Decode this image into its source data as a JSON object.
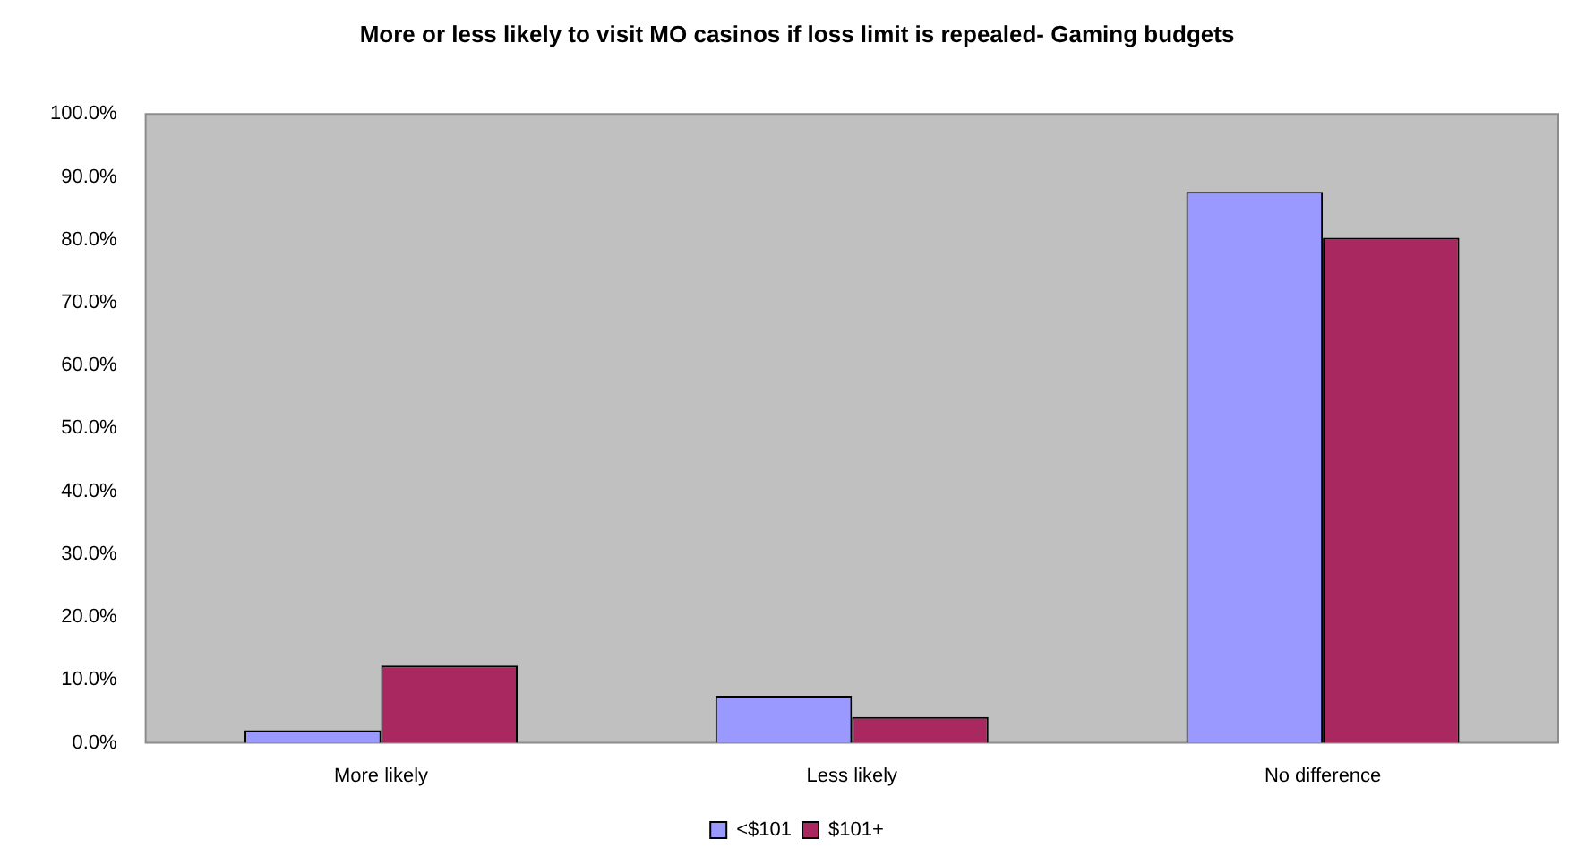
{
  "chart_data": {
    "type": "bar",
    "title": "More or less likely to visit MO casinos if loss limit is repealed- Gaming budgets",
    "categories": [
      "More likely",
      "Less likely",
      "No difference"
    ],
    "series": [
      {
        "name": "<$101",
        "color": "#9999ff",
        "values": [
          2.0,
          7.5,
          87.6
        ]
      },
      {
        "name": "$101+",
        "color": "#a8285f",
        "values": [
          12.3,
          4.1,
          80.3
        ]
      }
    ],
    "ylim": [
      0,
      100
    ],
    "yticks": [
      {
        "value": 0,
        "label": "0.0%"
      },
      {
        "value": 10,
        "label": "10.0%"
      },
      {
        "value": 20,
        "label": "20.0%"
      },
      {
        "value": 30,
        "label": "30.0%"
      },
      {
        "value": 40,
        "label": "40.0%"
      },
      {
        "value": 50,
        "label": "50.0%"
      },
      {
        "value": 60,
        "label": "60.0%"
      },
      {
        "value": 70,
        "label": "70.0%"
      },
      {
        "value": 80,
        "label": "80.0%"
      },
      {
        "value": 90,
        "label": "90.0%"
      },
      {
        "value": 100,
        "label": "100.0%"
      }
    ],
    "grid": false,
    "legend": "bottom"
  }
}
